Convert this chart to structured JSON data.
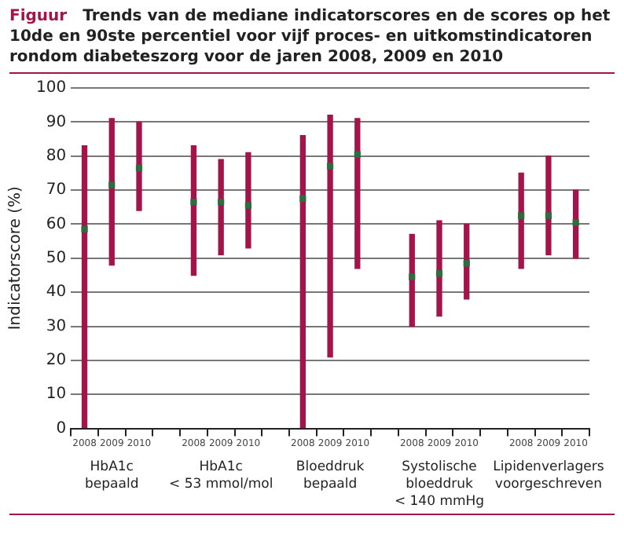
{
  "chart_data": {
    "type": "bar",
    "title": "Trends van de mediane indicatorscores en de scores op het 10de en 90ste percentiel voor vijf proces- en uitkomstindicatoren rondom diabeteszorg voor de jaren 2008, 2009 en 2010",
    "ylabel": "Indicatorscore (%)",
    "annotations": [
      "Figuur",
      "HbA1c\nbepaald",
      "HbA1c\n< 53 mmol/mol",
      "Bloeddruk\nbepaald",
      "Systolische\nbloeddruk\n< 140 mmHg",
      "Lipidenverlagers\nvoorgeschreven"
    ],
    "categories": [
      "2008",
      "2009",
      "2010",
      null,
      "2008",
      "2009",
      "2010",
      null,
      "2008",
      "2009",
      "2010",
      null,
      "2008",
      "2009",
      "2010",
      null,
      "2008",
      "2009",
      "2010"
    ],
    "series": [
      {
        "color": "#a3154a",
        "base": [
          0,
          48,
          64,
          null,
          45,
          51,
          53,
          null,
          0,
          21,
          47,
          null,
          30,
          33,
          38,
          null,
          47,
          51,
          50
        ],
        "values": [
          83,
          43,
          26,
          null,
          38,
          28,
          28,
          null,
          86,
          71,
          44,
          null,
          27,
          28,
          22,
          null,
          28,
          29,
          20
        ]
      },
      {
        "type": "scatter",
        "color": "#2d6e3e",
        "values": [
          58.5,
          71.5,
          76.5,
          null,
          66.5,
          66.5,
          65.5,
          null,
          67.5,
          77,
          80.5,
          null,
          44.5,
          45.5,
          48.5,
          null,
          62.5,
          62.5,
          60.5
        ]
      }
    ],
    "marker": "square",
    "ylim": [
      0,
      100
    ],
    "yticks": [
      0,
      10,
      20,
      30,
      40,
      50,
      60,
      70,
      80,
      90,
      100
    ],
    "grid": "y"
  }
}
